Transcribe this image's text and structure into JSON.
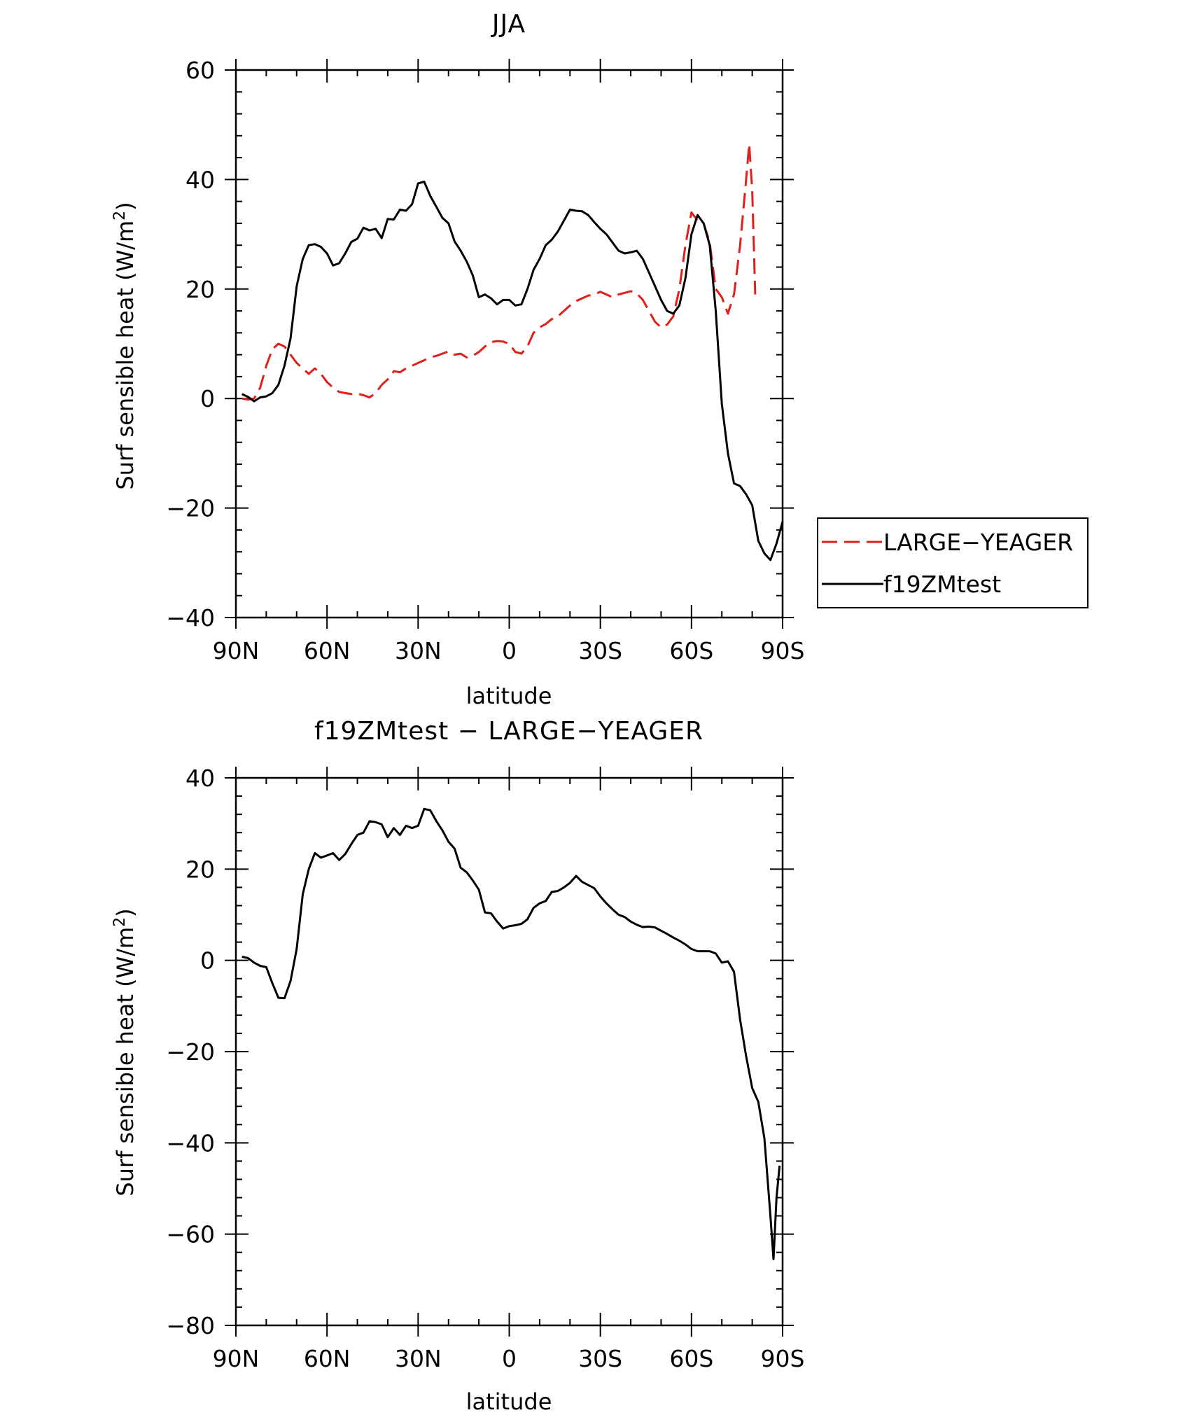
{
  "chart_data": [
    {
      "type": "line",
      "title": "JJA",
      "xlabel": "latitude",
      "ylabel": "Surf sensible heat (W/m²)",
      "ylabel_parts": {
        "main": "Surf sensible heat (W/m",
        "sup": "2",
        "end": ")"
      },
      "x_ticks": [
        90,
        60,
        30,
        0,
        -30,
        -60,
        -90
      ],
      "x_tick_labels": [
        "90N",
        "60N",
        "30N",
        "0",
        "30S",
        "60S",
        "90S"
      ],
      "xlim": [
        90,
        -90
      ],
      "y_ticks": [
        -40,
        -20,
        0,
        20,
        40,
        60
      ],
      "y_tick_labels": [
        "−40",
        "−20",
        "0",
        "20",
        "40",
        "60"
      ],
      "ylim": [
        -40,
        60
      ],
      "legend": {
        "placement": "outside-right",
        "entries": [
          "LARGE−YEAGER",
          "f19ZMtest"
        ]
      },
      "series": [
        {
          "name": "LARGE−YEAGER",
          "color": "#e0201a",
          "dash": "dashed",
          "points": [
            [
              88,
              0
            ],
            [
              86,
              -0.2
            ],
            [
              84,
              0
            ],
            [
              82,
              2
            ],
            [
              80,
              6
            ],
            [
              78,
              9
            ],
            [
              76,
              10
            ],
            [
              74,
              9.5
            ],
            [
              72,
              8
            ],
            [
              70,
              6.5
            ],
            [
              68,
              5.5
            ],
            [
              66,
              4.5
            ],
            [
              64,
              5.5
            ],
            [
              62,
              4.5
            ],
            [
              60,
              3
            ],
            [
              58,
              2
            ],
            [
              56,
              1.2
            ],
            [
              54,
              1
            ],
            [
              52,
              0.8
            ],
            [
              50,
              0.9
            ],
            [
              48,
              0.6
            ],
            [
              46,
              0.2
            ],
            [
              44,
              1
            ],
            [
              42,
              2.5
            ],
            [
              40,
              3.5
            ],
            [
              38,
              5
            ],
            [
              36,
              4.8
            ],
            [
              34,
              5.5
            ],
            [
              32,
              6
            ],
            [
              30,
              6.5
            ],
            [
              28,
              7
            ],
            [
              26,
              7.5
            ],
            [
              24,
              7.8
            ],
            [
              22,
              8.2
            ],
            [
              20,
              8.6
            ],
            [
              18,
              8
            ],
            [
              16,
              8.2
            ],
            [
              14,
              7.5
            ],
            [
              12,
              7.8
            ],
            [
              10,
              8.5
            ],
            [
              8,
              9.5
            ],
            [
              6,
              10.3
            ],
            [
              4,
              10.5
            ],
            [
              2,
              10.4
            ],
            [
              0,
              10
            ],
            [
              -2,
              8.5
            ],
            [
              -4,
              8.2
            ],
            [
              -6,
              9.5
            ],
            [
              -8,
              12
            ],
            [
              -10,
              13
            ],
            [
              -12,
              13.6
            ],
            [
              -14,
              14.5
            ],
            [
              -16,
              15
            ],
            [
              -18,
              16
            ],
            [
              -20,
              17
            ],
            [
              -22,
              17.8
            ],
            [
              -24,
              18.3
            ],
            [
              -26,
              18.8
            ],
            [
              -28,
              19
            ],
            [
              -30,
              19.5
            ],
            [
              -32,
              19
            ],
            [
              -34,
              18.5
            ],
            [
              -36,
              19
            ],
            [
              -38,
              19.3
            ],
            [
              -40,
              19.6
            ],
            [
              -42,
              19.2
            ],
            [
              -44,
              18
            ],
            [
              -46,
              16
            ],
            [
              -48,
              14
            ],
            [
              -50,
              13
            ],
            [
              -52,
              13.5
            ],
            [
              -54,
              15
            ],
            [
              -56,
              20
            ],
            [
              -58,
              28
            ],
            [
              -60,
              34
            ],
            [
              -62,
              32.5
            ],
            [
              -64,
              32
            ],
            [
              -66,
              28.5
            ],
            [
              -68,
              20
            ],
            [
              -70,
              18.5
            ],
            [
              -72,
              15.5
            ],
            [
              -74,
              19
            ],
            [
              -76,
              28
            ],
            [
              -78,
              40
            ],
            [
              -79,
              46.5
            ],
            [
              -80,
              38
            ],
            [
              -81,
              19
            ]
          ]
        },
        {
          "name": "f19ZMtest",
          "color": "#000000",
          "dash": "solid",
          "points": [
            [
              88,
              0.8
            ],
            [
              86,
              0.3
            ],
            [
              84,
              -0.5
            ],
            [
              82,
              0.2
            ],
            [
              80,
              0.4
            ],
            [
              78,
              1
            ],
            [
              76,
              2.5
            ],
            [
              74,
              6
            ],
            [
              72,
              11
            ],
            [
              70,
              20.5
            ],
            [
              68,
              25.5
            ],
            [
              66,
              28
            ],
            [
              64,
              28.2
            ],
            [
              62,
              27.7
            ],
            [
              60,
              26.5
            ],
            [
              58,
              24.3
            ],
            [
              56,
              24.7
            ],
            [
              54,
              26.5
            ],
            [
              52,
              28.6
            ],
            [
              50,
              29.2
            ],
            [
              48,
              31.2
            ],
            [
              46,
              30.7
            ],
            [
              44,
              31
            ],
            [
              42,
              29.3
            ],
            [
              40,
              32.8
            ],
            [
              38,
              32.7
            ],
            [
              36,
              34.5
            ],
            [
              34,
              34.3
            ],
            [
              32,
              35.5
            ],
            [
              30,
              39.3
            ],
            [
              28,
              39.6
            ],
            [
              26,
              37
            ],
            [
              24,
              35
            ],
            [
              22,
              33
            ],
            [
              20,
              32
            ],
            [
              18,
              28.7
            ],
            [
              16,
              27
            ],
            [
              14,
              25
            ],
            [
              12,
              22.5
            ],
            [
              10,
              18.5
            ],
            [
              8,
              19
            ],
            [
              6,
              18.3
            ],
            [
              4,
              17.2
            ],
            [
              2,
              18
            ],
            [
              0,
              18
            ],
            [
              -2,
              17
            ],
            [
              -4,
              17.2
            ],
            [
              -6,
              20
            ],
            [
              -8,
              23.5
            ],
            [
              -10,
              25.5
            ],
            [
              -12,
              28
            ],
            [
              -14,
              29
            ],
            [
              -16,
              30.5
            ],
            [
              -18,
              32.5
            ],
            [
              -20,
              34.5
            ],
            [
              -22,
              34.3
            ],
            [
              -24,
              34.2
            ],
            [
              -26,
              33.5
            ],
            [
              -28,
              32.2
            ],
            [
              -30,
              31
            ],
            [
              -32,
              30
            ],
            [
              -34,
              28.5
            ],
            [
              -36,
              27
            ],
            [
              -38,
              26.5
            ],
            [
              -40,
              26.7
            ],
            [
              -42,
              27
            ],
            [
              -44,
              25.5
            ],
            [
              -46,
              23
            ],
            [
              -48,
              20.5
            ],
            [
              -50,
              18
            ],
            [
              -52,
              16
            ],
            [
              -54,
              15.5
            ],
            [
              -56,
              17
            ],
            [
              -58,
              22
            ],
            [
              -60,
              30
            ],
            [
              -62,
              33.5
            ],
            [
              -64,
              32
            ],
            [
              -66,
              28
            ],
            [
              -68,
              16
            ],
            [
              -70,
              -1
            ],
            [
              -72,
              -10
            ],
            [
              -74,
              -15.5
            ],
            [
              -76,
              -16
            ],
            [
              -78,
              -17.5
            ],
            [
              -80,
              -19.5
            ],
            [
              -82,
              -26
            ],
            [
              -84,
              -28.3
            ],
            [
              -86,
              -29.5
            ],
            [
              -88,
              -26.5
            ],
            [
              -90,
              -22.5
            ]
          ]
        }
      ]
    },
    {
      "type": "line",
      "title": "f19ZMtest − LARGE−YEAGER",
      "xlabel": "latitude",
      "ylabel": "Surf sensible heat (W/m²)",
      "ylabel_parts": {
        "main": "Surf sensible heat (W/m",
        "sup": "2",
        "end": ")"
      },
      "x_ticks": [
        90,
        60,
        30,
        0,
        -30,
        -60,
        -90
      ],
      "x_tick_labels": [
        "90N",
        "60N",
        "30N",
        "0",
        "30S",
        "60S",
        "90S"
      ],
      "xlim": [
        90,
        -90
      ],
      "y_ticks": [
        -80,
        -60,
        -40,
        -20,
        0,
        20,
        40
      ],
      "y_tick_labels": [
        "−80",
        "−60",
        "−40",
        "−20",
        "0",
        "20",
        "40"
      ],
      "ylim": [
        -80,
        40
      ],
      "series": [
        {
          "color": "#000000",
          "dash": "solid",
          "points": [
            [
              88,
              0.8
            ],
            [
              86,
              0.5
            ],
            [
              84,
              -0.5
            ],
            [
              82,
              -1.2
            ],
            [
              80,
              -1.5
            ],
            [
              78,
              -5
            ],
            [
              76,
              -8.2
            ],
            [
              74,
              -8.3
            ],
            [
              72,
              -4.5
            ],
            [
              70,
              2.5
            ],
            [
              68,
              14.5
            ],
            [
              66,
              20
            ],
            [
              64,
              23.5
            ],
            [
              62,
              22.5
            ],
            [
              60,
              23
            ],
            [
              58,
              23.5
            ],
            [
              56,
              22
            ],
            [
              54,
              23.3
            ],
            [
              52,
              25.5
            ],
            [
              50,
              27.5
            ],
            [
              48,
              28
            ],
            [
              46,
              30.5
            ],
            [
              44,
              30.3
            ],
            [
              42,
              29.8
            ],
            [
              40,
              27
            ],
            [
              38,
              29
            ],
            [
              36,
              27.5
            ],
            [
              34,
              29.5
            ],
            [
              32,
              29
            ],
            [
              30,
              29.5
            ],
            [
              28,
              33.2
            ],
            [
              26,
              32.9
            ],
            [
              24,
              30.5
            ],
            [
              22,
              28.5
            ],
            [
              20,
              26
            ],
            [
              18,
              24.5
            ],
            [
              16,
              20.3
            ],
            [
              14,
              19.3
            ],
            [
              12,
              17.5
            ],
            [
              10,
              15.5
            ],
            [
              8,
              10.5
            ],
            [
              6,
              10.3
            ],
            [
              4,
              8.5
            ],
            [
              2,
              7
            ],
            [
              0,
              7.5
            ],
            [
              -2,
              7.7
            ],
            [
              -4,
              8
            ],
            [
              -6,
              9
            ],
            [
              -8,
              11.5
            ],
            [
              -10,
              12.5
            ],
            [
              -12,
              13
            ],
            [
              -14,
              15
            ],
            [
              -16,
              15.2
            ],
            [
              -18,
              16
            ],
            [
              -20,
              17
            ],
            [
              -22,
              18.5
            ],
            [
              -24,
              17.2
            ],
            [
              -26,
              16.5
            ],
            [
              -28,
              15.8
            ],
            [
              -30,
              14
            ],
            [
              -32,
              12.5
            ],
            [
              -34,
              11.2
            ],
            [
              -36,
              10
            ],
            [
              -38,
              9.5
            ],
            [
              -40,
              8.5
            ],
            [
              -42,
              7.8
            ],
            [
              -44,
              7.3
            ],
            [
              -46,
              7.4
            ],
            [
              -48,
              7.2
            ],
            [
              -50,
              6.5
            ],
            [
              -52,
              5.8
            ],
            [
              -54,
              5
            ],
            [
              -56,
              4.3
            ],
            [
              -58,
              3.5
            ],
            [
              -60,
              2.5
            ],
            [
              -62,
              2
            ],
            [
              -64,
              2
            ],
            [
              -66,
              2
            ],
            [
              -68,
              1.5
            ],
            [
              -70,
              -0.5
            ],
            [
              -72,
              -0.2
            ],
            [
              -74,
              -2.5
            ],
            [
              -76,
              -13
            ],
            [
              -78,
              -21
            ],
            [
              -80,
              -28
            ],
            [
              -82,
              -31
            ],
            [
              -84,
              -39
            ],
            [
              -86,
              -56
            ],
            [
              -87,
              -65.5
            ],
            [
              -88,
              -52
            ],
            [
              -89,
              -45
            ]
          ]
        }
      ]
    }
  ]
}
